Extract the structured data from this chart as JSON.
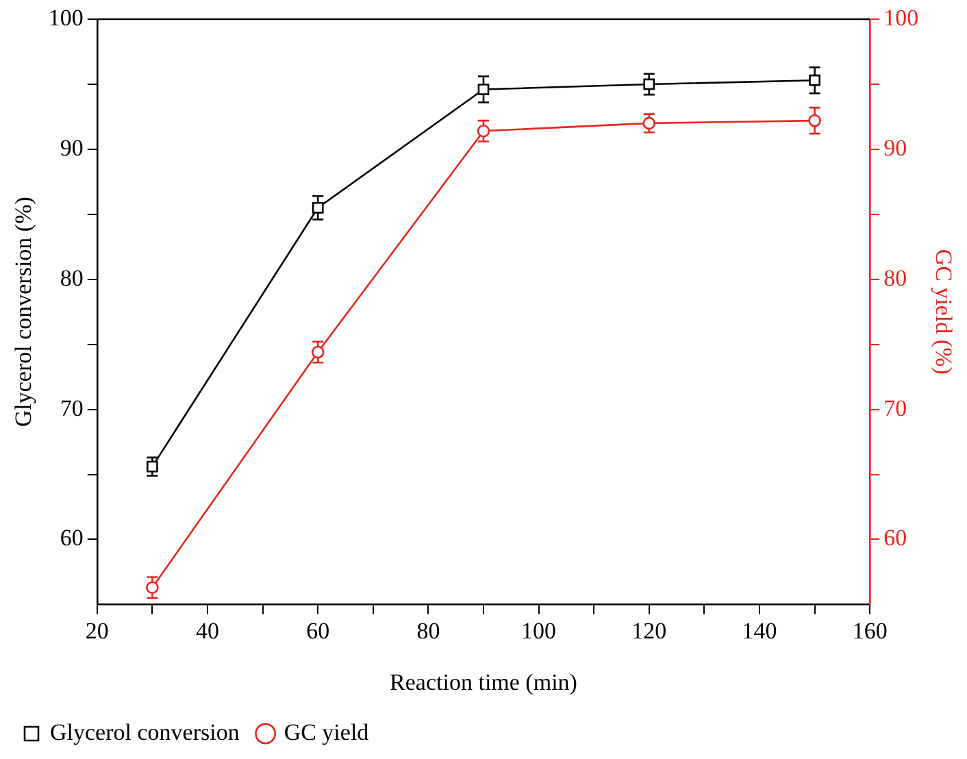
{
  "chart_data": {
    "type": "line",
    "xlabel": "Reaction time (min)",
    "ylabel": "Glycerol conversion (%)",
    "y2label": "GC yield (%)",
    "x": [
      30,
      60,
      90,
      120,
      150
    ],
    "series": [
      {
        "name": "Glycerol conversion",
        "color": "#000000",
        "marker": "square",
        "values": [
          65.6,
          85.5,
          94.6,
          95.0,
          95.3
        ],
        "errors": [
          0.7,
          0.9,
          1.0,
          0.8,
          1.0
        ]
      },
      {
        "name": "GC yield",
        "color": "#e8251f",
        "marker": "circle",
        "axis": "y2",
        "values": [
          56.3,
          74.4,
          91.4,
          92.0,
          92.2
        ],
        "errors": [
          0.8,
          0.8,
          0.8,
          0.7,
          1.0
        ]
      }
    ],
    "xlim": [
      20,
      160
    ],
    "xticks": [
      20,
      {
        "value": 30,
        "label": null
      },
      40,
      {
        "value": 50,
        "label": null
      },
      60,
      {
        "value": 70,
        "label": null
      },
      80,
      {
        "value": 90,
        "label": null
      },
      100,
      {
        "value": 110,
        "label": null
      },
      120,
      {
        "value": 130,
        "label": null
      },
      140,
      {
        "value": 150,
        "label": null
      },
      160
    ],
    "ylim": [
      55,
      100
    ],
    "yticks": [
      60,
      {
        "value": 65,
        "label": null
      },
      70,
      {
        "value": 75,
        "label": null
      },
      80,
      {
        "value": 85,
        "label": null
      },
      90,
      {
        "value": 95,
        "label": null
      },
      100
    ],
    "y2lim": [
      55,
      100
    ],
    "y2ticks": [
      60,
      {
        "value": 65,
        "label": null
      },
      70,
      {
        "value": 75,
        "label": null
      },
      80,
      {
        "value": 85,
        "label": null
      },
      90,
      {
        "value": 95,
        "label": null
      },
      100
    ],
    "line_style": "solid",
    "grid": false,
    "legend": "bottom left"
  }
}
